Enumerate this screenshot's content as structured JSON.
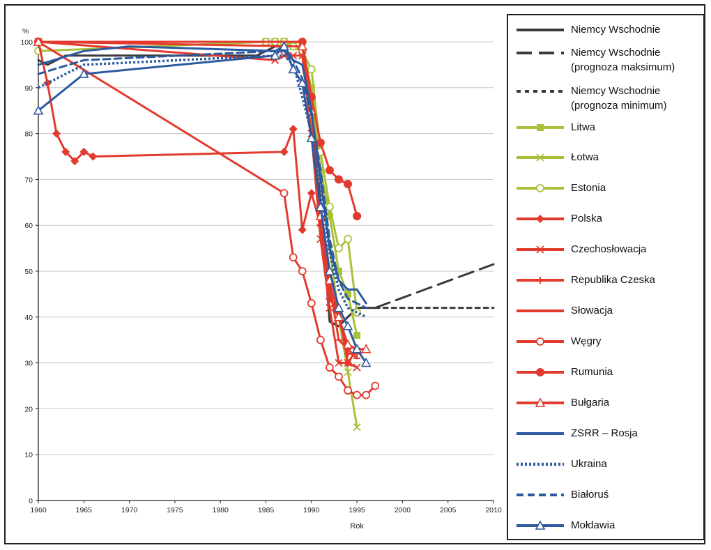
{
  "chart_data": {
    "type": "line",
    "ylabel": "%",
    "xlabel": "Rok",
    "xlim": [
      1960,
      2010
    ],
    "ylim": [
      0,
      100
    ],
    "x_ticks": [
      1960,
      1965,
      1970,
      1975,
      1980,
      1985,
      1990,
      1995,
      2000,
      2005,
      2010
    ],
    "y_ticks": [
      0,
      10,
      20,
      30,
      40,
      50,
      60,
      70,
      80,
      90,
      100
    ],
    "grid": "horizontal",
    "legend_position": "right",
    "series": [
      {
        "name": "Niemcy Wschodnie",
        "color": "#3a3a3a",
        "style": "solid",
        "marker": "none",
        "points": [
          [
            1960,
            96
          ],
          [
            1961,
            95
          ],
          [
            1962,
            96
          ],
          [
            1963,
            97
          ],
          [
            1984,
            97
          ],
          [
            1985,
            98
          ],
          [
            1986,
            99
          ],
          [
            1987,
            99
          ],
          [
            1988,
            99
          ],
          [
            1989,
            98
          ],
          [
            1990,
            85
          ],
          [
            1991,
            65
          ],
          [
            1992,
            39
          ],
          [
            1993,
            38
          ],
          [
            1994,
            40
          ],
          [
            1995,
            42
          ],
          [
            1996,
            42
          ],
          [
            1997,
            42
          ]
        ]
      },
      {
        "name": "Niemcy Wschodnie (prognoza maksimum)",
        "color": "#3a3a3a",
        "style": "longdash",
        "marker": "none",
        "points": [
          [
            1997,
            42
          ],
          [
            2010,
            51.5
          ]
        ]
      },
      {
        "name": "Niemcy Wschodnie (prognoza minimum)",
        "color": "#3a3a3a",
        "style": "shortdash",
        "marker": "none",
        "points": [
          [
            1997,
            42
          ],
          [
            2010,
            42
          ]
        ]
      },
      {
        "name": "Litwa",
        "color": "#a7c23a",
        "style": "solid",
        "marker": "square",
        "points": [
          [
            1960,
            100
          ],
          [
            1985,
            100
          ],
          [
            1986,
            100
          ],
          [
            1987,
            100
          ],
          [
            1988,
            99
          ],
          [
            1989,
            98
          ],
          [
            1990,
            90
          ],
          [
            1991,
            72
          ],
          [
            1992,
            62
          ],
          [
            1993,
            50
          ],
          [
            1994,
            45
          ],
          [
            1995,
            36
          ]
        ]
      },
      {
        "name": "Łotwa",
        "color": "#a7c23a",
        "style": "solid",
        "marker": "cross",
        "points": [
          [
            1960,
            100
          ],
          [
            1985,
            100
          ],
          [
            1986,
            100
          ],
          [
            1987,
            100
          ],
          [
            1988,
            99
          ],
          [
            1989,
            99
          ],
          [
            1990,
            88
          ],
          [
            1991,
            70
          ],
          [
            1992,
            55
          ],
          [
            1993,
            40
          ],
          [
            1994,
            28
          ],
          [
            1995,
            16
          ]
        ]
      },
      {
        "name": "Estonia",
        "color": "#a7c23a",
        "style": "solid",
        "marker": "circle",
        "points": [
          [
            1960,
            98
          ],
          [
            1985,
            100
          ],
          [
            1986,
            100
          ],
          [
            1987,
            100
          ],
          [
            1988,
            99
          ],
          [
            1989,
            98
          ],
          [
            1990,
            94
          ],
          [
            1991,
            76
          ],
          [
            1992,
            64
          ],
          [
            1993,
            55
          ],
          [
            1994,
            57
          ],
          [
            1995,
            41
          ]
        ]
      },
      {
        "name": "Polska",
        "color": "#e23b2e",
        "style": "solid",
        "marker": "diamond",
        "points": [
          [
            1960,
            100
          ],
          [
            1961,
            91
          ],
          [
            1962,
            80
          ],
          [
            1963,
            76
          ],
          [
            1964,
            74
          ],
          [
            1965,
            76
          ],
          [
            1966,
            75
          ],
          [
            1987,
            76
          ],
          [
            1988,
            81
          ],
          [
            1989,
            59
          ],
          [
            1990,
            67
          ],
          [
            1991,
            60
          ],
          [
            1992,
            44
          ],
          [
            1993,
            41
          ],
          [
            1994,
            30
          ],
          [
            1995,
            33
          ]
        ]
      },
      {
        "name": "Czechosłowacja",
        "color": "#e23b2e",
        "style": "solid",
        "marker": "x",
        "points": [
          [
            1960,
            100
          ],
          [
            1986,
            96
          ],
          [
            1987,
            97
          ],
          [
            1988,
            97
          ],
          [
            1989,
            97
          ],
          [
            1990,
            80
          ],
          [
            1991,
            57
          ],
          [
            1992,
            42
          ],
          [
            1993,
            30
          ],
          [
            1994,
            30
          ],
          [
            1995,
            29
          ]
        ]
      },
      {
        "name": "Republika Czeska",
        "color": "#e23b2e",
        "style": "solid",
        "marker": "plus",
        "points": [
          [
            1992,
            45
          ],
          [
            1993,
            40
          ],
          [
            1994,
            32
          ],
          [
            1995,
            32
          ]
        ]
      },
      {
        "name": "Słowacja",
        "color": "#e23b2e",
        "style": "solid",
        "marker": "dash",
        "points": [
          [
            1991,
            60
          ],
          [
            1992,
            47
          ],
          [
            1993,
            35
          ],
          [
            1994,
            33
          ],
          [
            1995,
            31
          ]
        ]
      },
      {
        "name": "Węgry",
        "color": "#e23b2e",
        "style": "solid",
        "marker": "opencircle",
        "points": [
          [
            1960,
            100
          ],
          [
            1987,
            67
          ],
          [
            1988,
            53
          ],
          [
            1989,
            50
          ],
          [
            1990,
            43
          ],
          [
            1991,
            35
          ],
          [
            1992,
            29
          ],
          [
            1993,
            27
          ],
          [
            1994,
            24
          ],
          [
            1995,
            23
          ],
          [
            1996,
            23
          ],
          [
            1997,
            25
          ]
        ]
      },
      {
        "name": "Rumunia",
        "color": "#e23b2e",
        "style": "solid",
        "marker": "filledcircle",
        "points": [
          [
            1960,
            100
          ],
          [
            1989,
            100
          ],
          [
            1990,
            88
          ],
          [
            1991,
            78
          ],
          [
            1992,
            72
          ],
          [
            1993,
            70
          ],
          [
            1994,
            69
          ],
          [
            1995,
            62
          ]
        ]
      },
      {
        "name": "Bułgaria",
        "color": "#e23b2e",
        "style": "solid",
        "marker": "triangle",
        "points": [
          [
            1960,
            100
          ],
          [
            1989,
            99
          ],
          [
            1990,
            85
          ],
          [
            1991,
            62
          ],
          [
            1992,
            48
          ],
          [
            1993,
            40
          ],
          [
            1994,
            34
          ],
          [
            1995,
            33
          ],
          [
            1996,
            33
          ]
        ]
      },
      {
        "name": "ZSRR – Rosja",
        "color": "#2c5aa0",
        "style": "solid",
        "marker": "none",
        "points": [
          [
            1960,
            95
          ],
          [
            1965,
            98
          ],
          [
            1970,
            99
          ],
          [
            1986,
            98
          ],
          [
            1987,
            99
          ],
          [
            1988,
            96
          ],
          [
            1989,
            95
          ],
          [
            1990,
            85
          ],
          [
            1991,
            70
          ],
          [
            1992,
            55
          ],
          [
            1993,
            48
          ],
          [
            1994,
            46
          ],
          [
            1995,
            46
          ],
          [
            1996,
            43
          ]
        ]
      },
      {
        "name": "Ukraina",
        "color": "#2c5aa0",
        "style": "dotted",
        "marker": "none",
        "points": [
          [
            1960,
            90
          ],
          [
            1965,
            95
          ],
          [
            1986,
            97
          ],
          [
            1987,
            97
          ],
          [
            1988,
            95
          ],
          [
            1989,
            88
          ],
          [
            1990,
            80
          ],
          [
            1991,
            68
          ],
          [
            1992,
            54
          ],
          [
            1993,
            46
          ],
          [
            1994,
            42
          ],
          [
            1995,
            41
          ],
          [
            1996,
            40
          ]
        ]
      },
      {
        "name": "Białoruś",
        "color": "#2c5aa0",
        "style": "dashed",
        "marker": "none",
        "points": [
          [
            1960,
            93
          ],
          [
            1965,
            96
          ],
          [
            1986,
            98
          ],
          [
            1987,
            98
          ],
          [
            1988,
            96
          ],
          [
            1989,
            92
          ],
          [
            1990,
            84
          ],
          [
            1991,
            72
          ],
          [
            1992,
            57
          ],
          [
            1993,
            48
          ],
          [
            1994,
            44
          ],
          [
            1995,
            43
          ],
          [
            1996,
            42
          ]
        ]
      },
      {
        "name": "Mołdawia",
        "color": "#2c5aa0",
        "style": "solid",
        "marker": "triangle",
        "points": [
          [
            1960,
            85
          ],
          [
            1965,
            93
          ],
          [
            1986,
            97
          ],
          [
            1987,
            99
          ],
          [
            1988,
            94
          ],
          [
            1989,
            91
          ],
          [
            1990,
            79
          ],
          [
            1991,
            64
          ],
          [
            1992,
            50
          ],
          [
            1993,
            42
          ],
          [
            1994,
            38
          ],
          [
            1995,
            33
          ],
          [
            1996,
            30
          ]
        ]
      }
    ]
  }
}
